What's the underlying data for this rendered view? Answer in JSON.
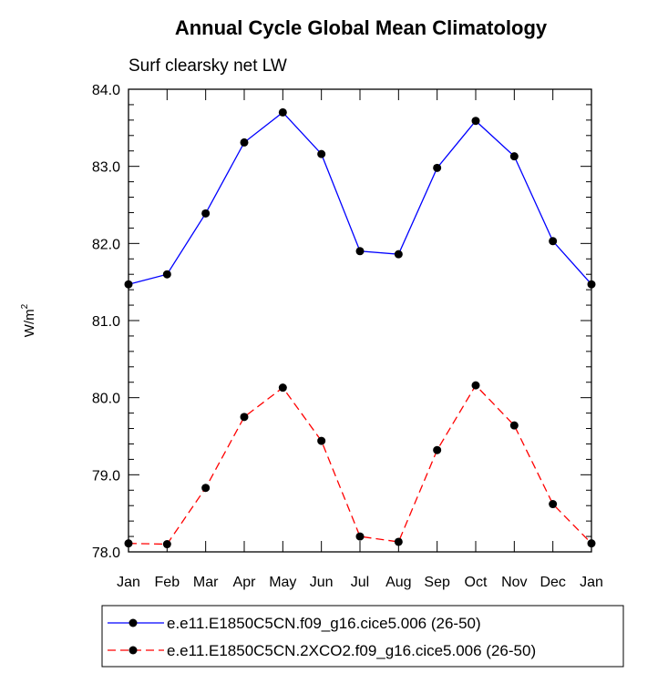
{
  "chart_data": {
    "type": "line",
    "title": "Annual Cycle Global Mean Climatology",
    "subtitle": "Surf clearsky net LW",
    "ylabel_base": "W/m",
    "ylabel_sup": "2",
    "xlabel": "",
    "ylim": [
      78.0,
      84.0
    ],
    "yticks": [
      78.0,
      79.0,
      80.0,
      81.0,
      82.0,
      83.0,
      84.0
    ],
    "ytick_labels": [
      "78.0",
      "79.0",
      "80.0",
      "81.0",
      "82.0",
      "83.0",
      "84.0"
    ],
    "categories": [
      "Jan",
      "Feb",
      "Mar",
      "Apr",
      "May",
      "Jun",
      "Jul",
      "Aug",
      "Sep",
      "Oct",
      "Nov",
      "Dec",
      "Jan"
    ],
    "series": [
      {
        "name": "e.e11.E1850C5CN.f09_g16.cice5.006 (26-50)",
        "color": "#0000ff",
        "dash": "solid",
        "values": [
          81.47,
          81.6,
          82.39,
          83.31,
          83.7,
          83.16,
          81.9,
          81.86,
          82.98,
          83.59,
          83.13,
          82.03,
          81.47
        ]
      },
      {
        "name": "e.e11.E1850C5CN.2XCO2.f09_g16.cice5.006 (26-50)",
        "color": "#ff0000",
        "dash": "dashed",
        "values": [
          78.11,
          78.1,
          78.83,
          79.75,
          80.13,
          79.44,
          78.2,
          78.13,
          79.32,
          80.16,
          79.64,
          78.62,
          78.11
        ]
      }
    ],
    "grid": false,
    "legend_position": "bottom"
  }
}
